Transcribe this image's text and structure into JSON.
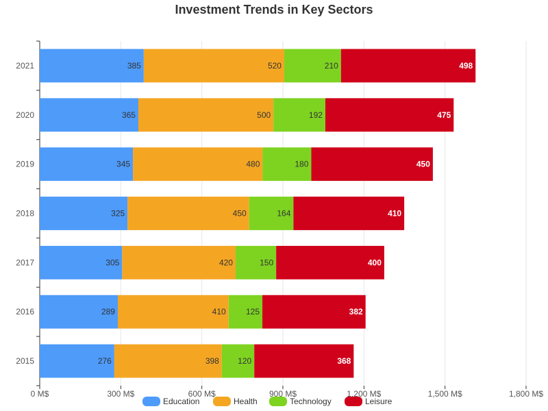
{
  "chart_data": {
    "type": "bar",
    "orientation": "horizontal",
    "stacked": true,
    "title": "Investment Trends in Key Sectors",
    "xlabel": "",
    "ylabel": "",
    "categories": [
      "2021",
      "2020",
      "2019",
      "2018",
      "2017",
      "2016",
      "2015"
    ],
    "series": [
      {
        "name": "Education",
        "color": "#4e9bfa",
        "label_color": "#333333",
        "values": [
          385,
          365,
          345,
          325,
          305,
          289,
          276
        ]
      },
      {
        "name": "Health",
        "color": "#f4a623",
        "label_color": "#333333",
        "values": [
          520,
          500,
          480,
          450,
          420,
          410,
          398
        ]
      },
      {
        "name": "Technology",
        "color": "#7ed321",
        "label_color": "#333333",
        "values": [
          210,
          192,
          180,
          164,
          150,
          125,
          120
        ]
      },
      {
        "name": "Leisure",
        "color": "#d0021b",
        "label_color": "#ffffff",
        "values": [
          498,
          475,
          450,
          410,
          400,
          382,
          368
        ]
      }
    ],
    "xlim": [
      0,
      1800
    ],
    "xticks": [
      0,
      300,
      600,
      900,
      1200,
      1500,
      1800
    ],
    "xtick_labels": [
      "0 M$",
      "300 M$",
      "600 M$",
      "900 M$",
      "1,200 M$",
      "1,500 M$",
      "1,800 M$"
    ],
    "grid": "vertical",
    "legend_position": "bottom"
  }
}
